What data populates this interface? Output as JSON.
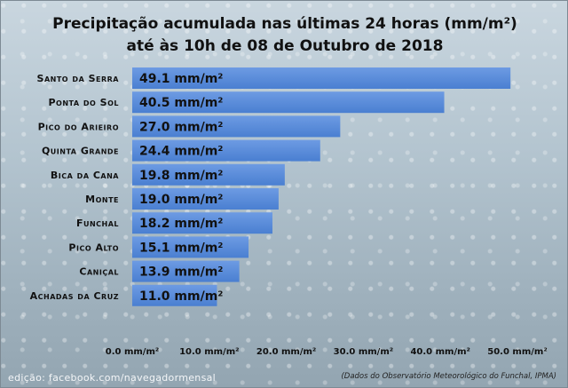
{
  "title_line1": "Precipitação acumulada nas últimas 24 horas (mm/m²)",
  "title_line2": "até às 10h de 08 de Outubro de 2018",
  "credit": "edição: facebook.com/navegadormensal",
  "source": "(Dados do Observatório Meteorológico do Funchal, IPMA)",
  "chart_data": {
    "type": "bar",
    "orientation": "horizontal",
    "title": "Precipitação acumulada nas últimas 24 horas (mm/m²) até às 10h de 08 de Outubro de 2018",
    "categories": [
      "Santo da Serra",
      "Ponta do Sol",
      "Pico do Arieiro",
      "Quinta Grande",
      "Bica da Cana",
      "Monte",
      "Funchal",
      "Pico Alto",
      "Caniçal",
      "Achadas da Cruz"
    ],
    "values": [
      49.1,
      40.5,
      27.0,
      24.4,
      19.8,
      19.0,
      18.2,
      15.1,
      13.9,
      11.0
    ],
    "data_labels": [
      "49.1 mm/m²",
      "40.5 mm/m²",
      "27.0 mm/m²",
      "24.4 mm/m²",
      "19.8 mm/m²",
      "19.0 mm/m²",
      "18.2 mm/m²",
      "15.1 mm/m²",
      "13.9 mm/m²",
      "11.0 mm/m²"
    ],
    "x_ticks": [
      "0.0 mm/m²",
      "10.0 mm/m²",
      "20.0 mm/m²",
      "30.0 mm/m²",
      "40.0 mm/m²",
      "50.0 mm/m²"
    ],
    "x_tick_values": [
      0,
      10,
      20,
      30,
      40,
      50
    ],
    "xlim": [
      0,
      50
    ],
    "grid": false,
    "bar_color": "#4a7fd1"
  }
}
